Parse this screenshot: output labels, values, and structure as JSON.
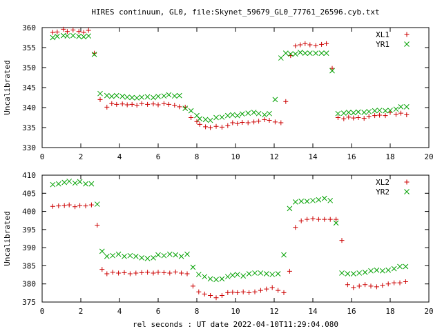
{
  "chart_data": [
    {
      "type": "scatter",
      "title": "HIRES continuum, GL0, file:Skynet_59679_GL0_77761_26596.cyb.txt",
      "xlabel": "",
      "ylabel": "Uncalibrated",
      "xlim": [
        0,
        20
      ],
      "ylim": [
        330,
        360
      ],
      "xticks": [
        0,
        2,
        4,
        6,
        8,
        10,
        12,
        14,
        16,
        18,
        20
      ],
      "yticks": [
        330,
        335,
        340,
        345,
        350,
        355,
        360
      ],
      "legend_position": "top-right",
      "grid": false,
      "series": [
        {
          "name": "XL1",
          "marker": "plus",
          "color": "#cc0000",
          "x": [
            0.55,
            0.78,
            1.1,
            1.3,
            1.6,
            1.9,
            2.15,
            2.4,
            2.7,
            3.0,
            3.35,
            3.6,
            3.85,
            4.15,
            4.4,
            4.65,
            4.9,
            5.15,
            5.45,
            5.75,
            6.0,
            6.3,
            6.55,
            6.85,
            7.1,
            7.4,
            7.7,
            8.0,
            8.15,
            8.45,
            8.7,
            9.0,
            9.3,
            9.6,
            9.85,
            10.1,
            10.35,
            10.65,
            10.95,
            11.2,
            11.5,
            11.75,
            12.05,
            12.35,
            12.6,
            12.85,
            13.1,
            13.35,
            13.6,
            13.85,
            14.15,
            14.45,
            14.7,
            15.0,
            15.3,
            15.6,
            15.85,
            16.1,
            16.35,
            16.65,
            16.9,
            17.2,
            17.45,
            17.75,
            18.0,
            18.3,
            18.55,
            18.85
          ],
          "y": [
            358.8,
            358.9,
            359.6,
            359.0,
            359.4,
            359.0,
            358.8,
            359.3,
            353.6,
            342.0,
            340.1,
            341.0,
            340.8,
            340.9,
            340.7,
            340.8,
            340.6,
            341.0,
            340.8,
            340.9,
            340.7,
            341.0,
            340.8,
            340.6,
            340.2,
            340.1,
            337.5,
            336.5,
            335.8,
            335.2,
            335.0,
            335.3,
            335.1,
            335.5,
            336.2,
            336.0,
            336.3,
            336.2,
            336.4,
            336.6,
            337.0,
            336.8,
            336.4,
            336.2,
            341.5,
            353.0,
            355.4,
            355.7,
            356.0,
            355.7,
            355.5,
            355.8,
            356.0,
            349.8,
            337.5,
            337.2,
            337.6,
            337.4,
            337.5,
            337.3,
            337.8,
            338.0,
            338.1,
            338.0,
            338.8,
            338.3,
            338.6,
            338.2
          ],
          "note": ""
        },
        {
          "name": "YR1",
          "marker": "cross",
          "color": "#00a000",
          "x": [
            0.55,
            0.78,
            1.1,
            1.3,
            1.6,
            1.9,
            2.15,
            2.4,
            2.7,
            3.0,
            3.35,
            3.6,
            3.85,
            4.15,
            4.4,
            4.65,
            4.9,
            5.15,
            5.45,
            5.75,
            6.0,
            6.3,
            6.55,
            6.85,
            7.1,
            7.4,
            7.7,
            8.0,
            8.15,
            8.45,
            8.7,
            9.0,
            9.3,
            9.6,
            9.85,
            10.1,
            10.35,
            10.65,
            10.95,
            11.2,
            11.5,
            11.75,
            12.05,
            12.35,
            12.6,
            12.85,
            13.1,
            13.35,
            13.6,
            13.85,
            14.15,
            14.45,
            14.7,
            15.0,
            15.3,
            15.6,
            15.85,
            16.1,
            16.35,
            16.65,
            16.9,
            17.2,
            17.45,
            17.75,
            18.0,
            18.3,
            18.55,
            18.85
          ],
          "y": [
            357.5,
            357.8,
            358.0,
            357.9,
            358.0,
            357.8,
            357.7,
            357.9,
            353.3,
            343.5,
            343.0,
            342.8,
            343.0,
            342.8,
            342.6,
            342.5,
            342.4,
            342.6,
            342.7,
            342.5,
            342.8,
            342.9,
            343.2,
            342.9,
            343.0,
            339.8,
            339.2,
            338.0,
            337.2,
            337.0,
            336.8,
            337.5,
            337.6,
            338.0,
            338.2,
            338.0,
            338.4,
            338.6,
            338.8,
            338.5,
            338.2,
            338.5,
            342.0,
            352.4,
            353.6,
            353.4,
            353.4,
            353.8,
            353.6,
            353.6,
            353.6,
            353.6,
            353.6,
            349.2,
            338.5,
            338.6,
            338.8,
            338.7,
            338.9,
            338.8,
            339.0,
            339.2,
            339.3,
            339.2,
            339.3,
            339.6,
            340.2,
            340.2
          ],
          "note": ""
        }
      ]
    },
    {
      "type": "scatter",
      "title": "",
      "xlabel": "rel seconds : UT date 2022-04-10T11:29:04.080",
      "ylabel": "Uncalibrated",
      "xlim": [
        0,
        20
      ],
      "ylim": [
        375,
        410
      ],
      "xticks": [
        0,
        2,
        4,
        6,
        8,
        10,
        12,
        14,
        16,
        18,
        20
      ],
      "yticks": [
        375,
        380,
        385,
        390,
        395,
        400,
        405,
        410
      ],
      "legend_position": "top-right",
      "grid": false,
      "series": [
        {
          "name": "XL2",
          "marker": "plus",
          "color": "#cc0000",
          "x": [
            0.55,
            0.85,
            1.15,
            1.4,
            1.7,
            1.95,
            2.25,
            2.55,
            2.85,
            3.1,
            3.35,
            3.65,
            3.95,
            4.25,
            4.55,
            4.85,
            5.15,
            5.45,
            5.75,
            6.0,
            6.3,
            6.6,
            6.9,
            7.2,
            7.5,
            7.8,
            8.1,
            8.4,
            8.7,
            9.0,
            9.3,
            9.6,
            9.85,
            10.1,
            10.4,
            10.7,
            11.0,
            11.3,
            11.6,
            11.9,
            12.2,
            12.5,
            12.8,
            13.1,
            13.4,
            13.7,
            14.0,
            14.3,
            14.6,
            14.9,
            15.2,
            15.5,
            15.8,
            16.1,
            16.4,
            16.7,
            17.0,
            17.3,
            17.6,
            17.9,
            18.2,
            18.5,
            18.8
          ],
          "y": [
            401.4,
            401.5,
            401.6,
            401.8,
            401.3,
            401.6,
            401.5,
            401.8,
            396.2,
            384.0,
            382.8,
            383.2,
            383.0,
            383.1,
            382.8,
            383.0,
            383.1,
            383.2,
            383.0,
            383.2,
            383.1,
            383.0,
            383.3,
            383.0,
            382.8,
            379.4,
            377.8,
            377.2,
            376.8,
            376.2,
            376.8,
            377.6,
            377.7,
            377.6,
            377.8,
            377.6,
            377.8,
            378.2,
            378.6,
            379.0,
            378.2,
            377.6,
            383.5,
            395.6,
            397.4,
            397.8,
            398.0,
            397.8,
            397.8,
            397.8,
            397.8,
            392.0,
            379.8,
            379.0,
            379.4,
            379.8,
            379.4,
            379.2,
            379.6,
            380.0,
            380.3,
            380.3,
            380.6
          ],
          "note": ""
        },
        {
          "name": "YR2",
          "marker": "cross",
          "color": "#00a000",
          "x": [
            0.55,
            0.85,
            1.15,
            1.4,
            1.7,
            1.95,
            2.25,
            2.55,
            2.85,
            3.1,
            3.35,
            3.65,
            3.95,
            4.25,
            4.55,
            4.85,
            5.15,
            5.45,
            5.75,
            6.0,
            6.3,
            6.6,
            6.9,
            7.2,
            7.5,
            7.8,
            8.1,
            8.4,
            8.7,
            9.0,
            9.3,
            9.6,
            9.85,
            10.1,
            10.4,
            10.7,
            11.0,
            11.3,
            11.6,
            11.9,
            12.2,
            12.5,
            12.8,
            13.1,
            13.4,
            13.7,
            14.0,
            14.3,
            14.6,
            14.9,
            15.2,
            15.5,
            15.8,
            16.1,
            16.4,
            16.7,
            17.0,
            17.3,
            17.6,
            17.9,
            18.2,
            18.5,
            18.8
          ],
          "y": [
            407.4,
            407.6,
            408.0,
            408.3,
            407.8,
            408.2,
            407.6,
            407.6,
            402.0,
            389.0,
            387.6,
            387.8,
            388.2,
            387.6,
            387.8,
            387.6,
            387.2,
            387.0,
            387.2,
            388.0,
            387.8,
            388.2,
            388.0,
            387.6,
            388.2,
            384.6,
            382.6,
            382.0,
            381.4,
            381.2,
            381.4,
            382.0,
            382.4,
            382.6,
            382.2,
            382.8,
            383.0,
            383.0,
            382.8,
            382.6,
            382.8,
            388.0,
            400.8,
            402.6,
            402.8,
            402.8,
            403.0,
            403.2,
            403.6,
            403.0,
            396.8,
            383.0,
            382.8,
            382.8,
            383.0,
            383.2,
            383.6,
            383.8,
            383.6,
            383.8,
            384.2,
            384.8,
            384.8
          ],
          "note": ""
        }
      ]
    }
  ]
}
